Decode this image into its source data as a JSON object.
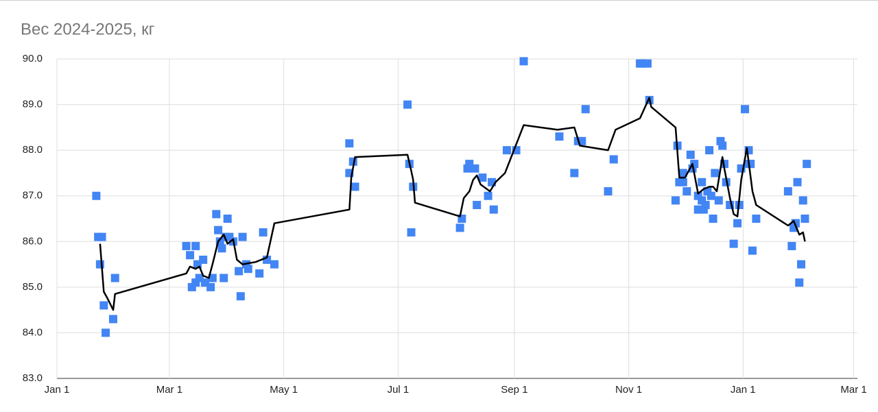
{
  "chart_data": {
    "type": "scatter",
    "title": "Вес 2024-2025, кг",
    "xlim": [
      0,
      427
    ],
    "ylim": [
      83,
      90
    ],
    "grid": true,
    "xticks": [
      {
        "value": 0,
        "label": "Jan 1"
      },
      {
        "value": 60,
        "label": "Mar 1"
      },
      {
        "value": 121,
        "label": "May 1"
      },
      {
        "value": 182,
        "label": "Jul 1"
      },
      {
        "value": 244,
        "label": "Sep 1"
      },
      {
        "value": 305,
        "label": "Nov 1"
      },
      {
        "value": 366,
        "label": "Jan 1"
      },
      {
        "value": 425,
        "label": "Mar 1"
      }
    ],
    "yticks": [
      {
        "value": 83,
        "label": "83.0"
      },
      {
        "value": 84,
        "label": "84.0"
      },
      {
        "value": 85,
        "label": "85.0"
      },
      {
        "value": 86,
        "label": "86.0"
      },
      {
        "value": 87,
        "label": "87.0"
      },
      {
        "value": 88,
        "label": "88.0"
      },
      {
        "value": 89,
        "label": "89.0"
      },
      {
        "value": 90,
        "label": "90.0"
      }
    ],
    "series": [
      {
        "type": "scatter",
        "color": "#4285f4",
        "x": [
          21,
          22,
          24,
          23,
          25,
          26,
          30,
          31,
          69,
          71,
          72,
          74,
          74,
          75,
          76,
          78,
          79,
          82,
          83,
          85,
          86,
          87,
          88,
          89,
          90,
          91,
          92,
          94,
          97,
          98,
          99,
          101,
          102,
          108,
          110,
          112,
          116,
          156,
          156,
          158,
          159,
          187,
          188,
          189,
          190,
          215,
          216,
          219,
          220,
          223,
          224,
          227,
          230,
          232,
          233,
          240,
          245,
          249,
          268,
          276,
          278,
          280,
          282,
          294,
          297,
          311,
          312,
          315,
          316,
          330,
          331,
          332,
          334,
          334,
          336,
          338,
          339,
          340,
          342,
          342,
          344,
          344,
          345,
          346,
          347,
          348,
          349,
          350,
          351,
          353,
          354,
          355,
          356,
          357,
          359,
          361,
          363,
          364,
          365,
          367,
          369,
          369,
          370,
          371,
          373,
          390,
          392,
          393,
          394,
          394,
          395,
          396,
          397,
          398,
          399,
          400
        ],
        "values": [
          87.0,
          86.1,
          86.1,
          85.5,
          84.6,
          84.0,
          84.3,
          85.2,
          85.9,
          85.7,
          85.0,
          85.1,
          85.9,
          85.5,
          85.2,
          85.6,
          85.1,
          85.0,
          85.2,
          86.6,
          86.25,
          86.0,
          85.85,
          85.2,
          86.1,
          86.5,
          86.1,
          86.0,
          85.35,
          84.8,
          86.1,
          85.5,
          85.4,
          85.3,
          86.2,
          85.6,
          85.5,
          88.15,
          87.5,
          87.75,
          87.2,
          89.0,
          87.7,
          86.2,
          87.2,
          86.3,
          86.5,
          87.6,
          87.7,
          87.6,
          86.8,
          87.4,
          87.0,
          87.3,
          86.7,
          88.0,
          88.0,
          89.95,
          88.3,
          87.5,
          88.2,
          88.2,
          88.9,
          87.1,
          87.8,
          89.9,
          89.9,
          89.9,
          89.1,
          86.9,
          88.1,
          87.3,
          87.5,
          87.3,
          87.1,
          87.9,
          87.6,
          87.7,
          87.0,
          86.7,
          86.9,
          87.3,
          86.7,
          86.8,
          87.1,
          88.0,
          87.0,
          86.5,
          87.5,
          86.9,
          88.2,
          88.1,
          87.7,
          87.3,
          86.8,
          85.95,
          86.4,
          86.8,
          87.6,
          88.9,
          87.7,
          88.0,
          87.7,
          85.8,
          86.5,
          87.1,
          85.9,
          86.3,
          86.4,
          86.4,
          87.3,
          85.1,
          85.5,
          86.9,
          86.5,
          87.7
        ]
      },
      {
        "type": "line",
        "color": "#000000",
        "x": [
          23,
          25,
          27,
          30,
          31,
          69,
          71,
          74,
          76,
          78,
          81,
          83,
          86,
          89,
          91,
          94,
          96,
          99,
          106,
          112,
          116,
          156,
          157,
          159,
          187,
          189,
          190,
          191,
          215,
          217,
          220,
          222,
          224,
          226,
          231,
          234,
          239,
          249,
          267,
          276,
          279,
          294,
          298,
          311,
          316,
          317,
          330,
          332,
          335,
          339,
          342,
          345,
          348,
          350,
          352,
          355,
          356,
          359,
          361,
          363,
          365,
          368,
          371,
          373,
          390,
          393,
          396,
          398,
          399
        ],
        "values": [
          85.95,
          84.9,
          84.75,
          84.5,
          84.85,
          85.3,
          85.45,
          85.4,
          85.45,
          85.25,
          85.2,
          85.5,
          86.0,
          86.15,
          85.95,
          86.05,
          85.6,
          85.5,
          85.55,
          85.65,
          86.4,
          86.7,
          87.4,
          87.85,
          87.9,
          87.55,
          87.35,
          86.85,
          86.55,
          86.95,
          87.1,
          87.35,
          87.45,
          87.25,
          87.1,
          87.3,
          87.5,
          88.55,
          88.45,
          88.5,
          88.1,
          88.0,
          88.45,
          88.7,
          89.15,
          88.95,
          88.5,
          87.4,
          87.4,
          87.7,
          87.05,
          87.15,
          87.2,
          87.2,
          87.1,
          87.85,
          87.6,
          86.95,
          86.6,
          86.55,
          87.35,
          88.05,
          87.1,
          86.8,
          86.35,
          86.45,
          86.15,
          86.2,
          86.0
        ]
      }
    ]
  }
}
